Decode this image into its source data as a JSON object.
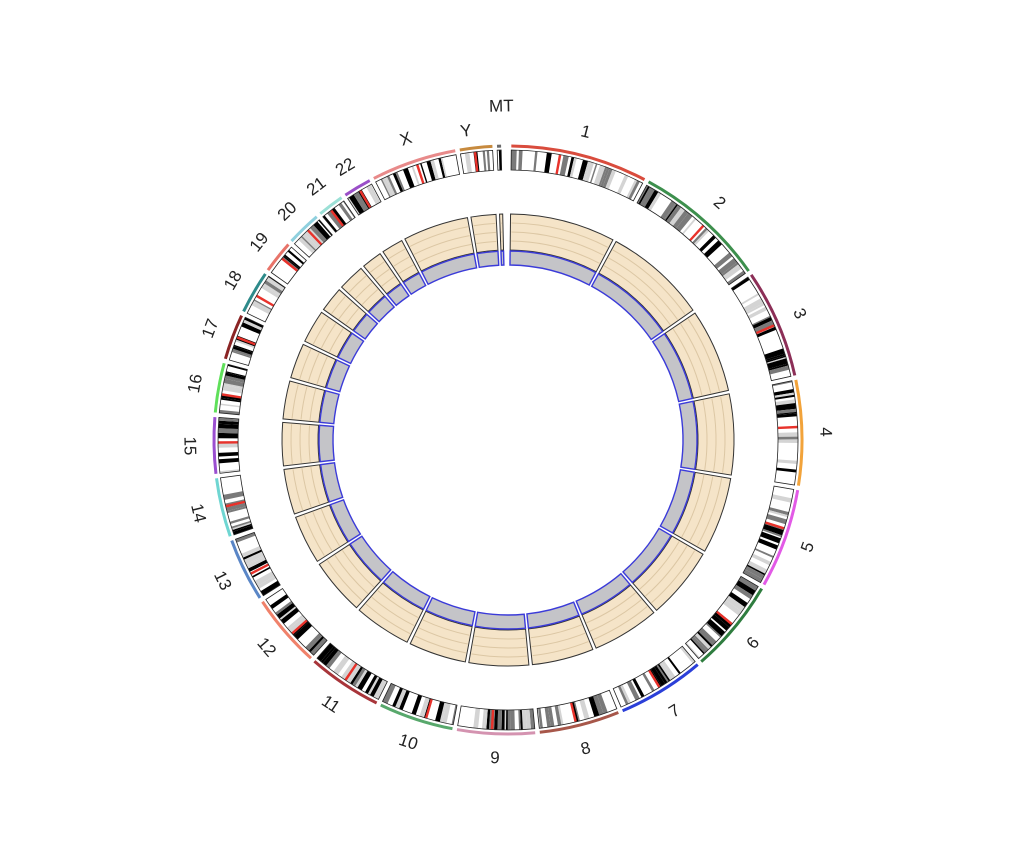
{
  "chart_data": {
    "type": "circos",
    "title": "",
    "chromosomes": [
      {
        "label": "1",
        "length": 249,
        "color": "#d94c3d"
      },
      {
        "label": "2",
        "length": 243,
        "color": "#3d8f4d"
      },
      {
        "label": "3",
        "length": 198,
        "color": "#8c2f57"
      },
      {
        "label": "4",
        "length": 191,
        "color": "#f2a33a"
      },
      {
        "label": "5",
        "length": 181,
        "color": "#e25ae6"
      },
      {
        "label": "6",
        "length": 171,
        "color": "#2f7d3f"
      },
      {
        "label": "7",
        "length": 159,
        "color": "#2b3fd8"
      },
      {
        "label": "8",
        "length": 146,
        "color": "#a7574a"
      },
      {
        "label": "9",
        "length": 141,
        "color": "#d493b0"
      },
      {
        "label": "10",
        "length": 136,
        "color": "#58a86c"
      },
      {
        "label": "11",
        "length": 135,
        "color": "#a8353a"
      },
      {
        "label": "12",
        "length": 134,
        "color": "#f0826b"
      },
      {
        "label": "13",
        "length": 115,
        "color": "#5a86c6"
      },
      {
        "label": "14",
        "length": 107,
        "color": "#6fd6d2"
      },
      {
        "label": "15",
        "length": 102,
        "color": "#9a4fd0"
      },
      {
        "label": "16",
        "length": 90,
        "color": "#5fe05a"
      },
      {
        "label": "17",
        "length": 83,
        "color": "#8a2424"
      },
      {
        "label": "18",
        "length": 78,
        "color": "#2e8a8a"
      },
      {
        "label": "19",
        "length": 59,
        "color": "#e8746a"
      },
      {
        "label": "20",
        "length": 63,
        "color": "#8fd0de"
      },
      {
        "label": "21",
        "length": 48,
        "color": "#9be0d6"
      },
      {
        "label": "22",
        "length": 51,
        "color": "#9a4fc8"
      },
      {
        "label": "X",
        "length": 155,
        "color": "#e88a8a"
      },
      {
        "label": "Y",
        "length": 59,
        "color": "#c78a3e"
      },
      {
        "label": "MT",
        "length": 2,
        "color": "#6c6c6c"
      }
    ],
    "tracks": [
      {
        "name": "",
        "type": "ideogram"
      },
      {
        "name": "",
        "type": "band"
      },
      {
        "name": "",
        "type": "band"
      }
    ],
    "colors": {
      "band_fill": "#f5e4c8",
      "band_grid": "#dcc7a4",
      "band_outline": "#333333",
      "inner_fill": "#c4c4c8",
      "inner_outline": "#3b3bd9",
      "centromere": "#e8322b",
      "band_dark": "#000000",
      "band_mid": "#7a7a7a",
      "band_light": "#d4d4d4"
    }
  }
}
